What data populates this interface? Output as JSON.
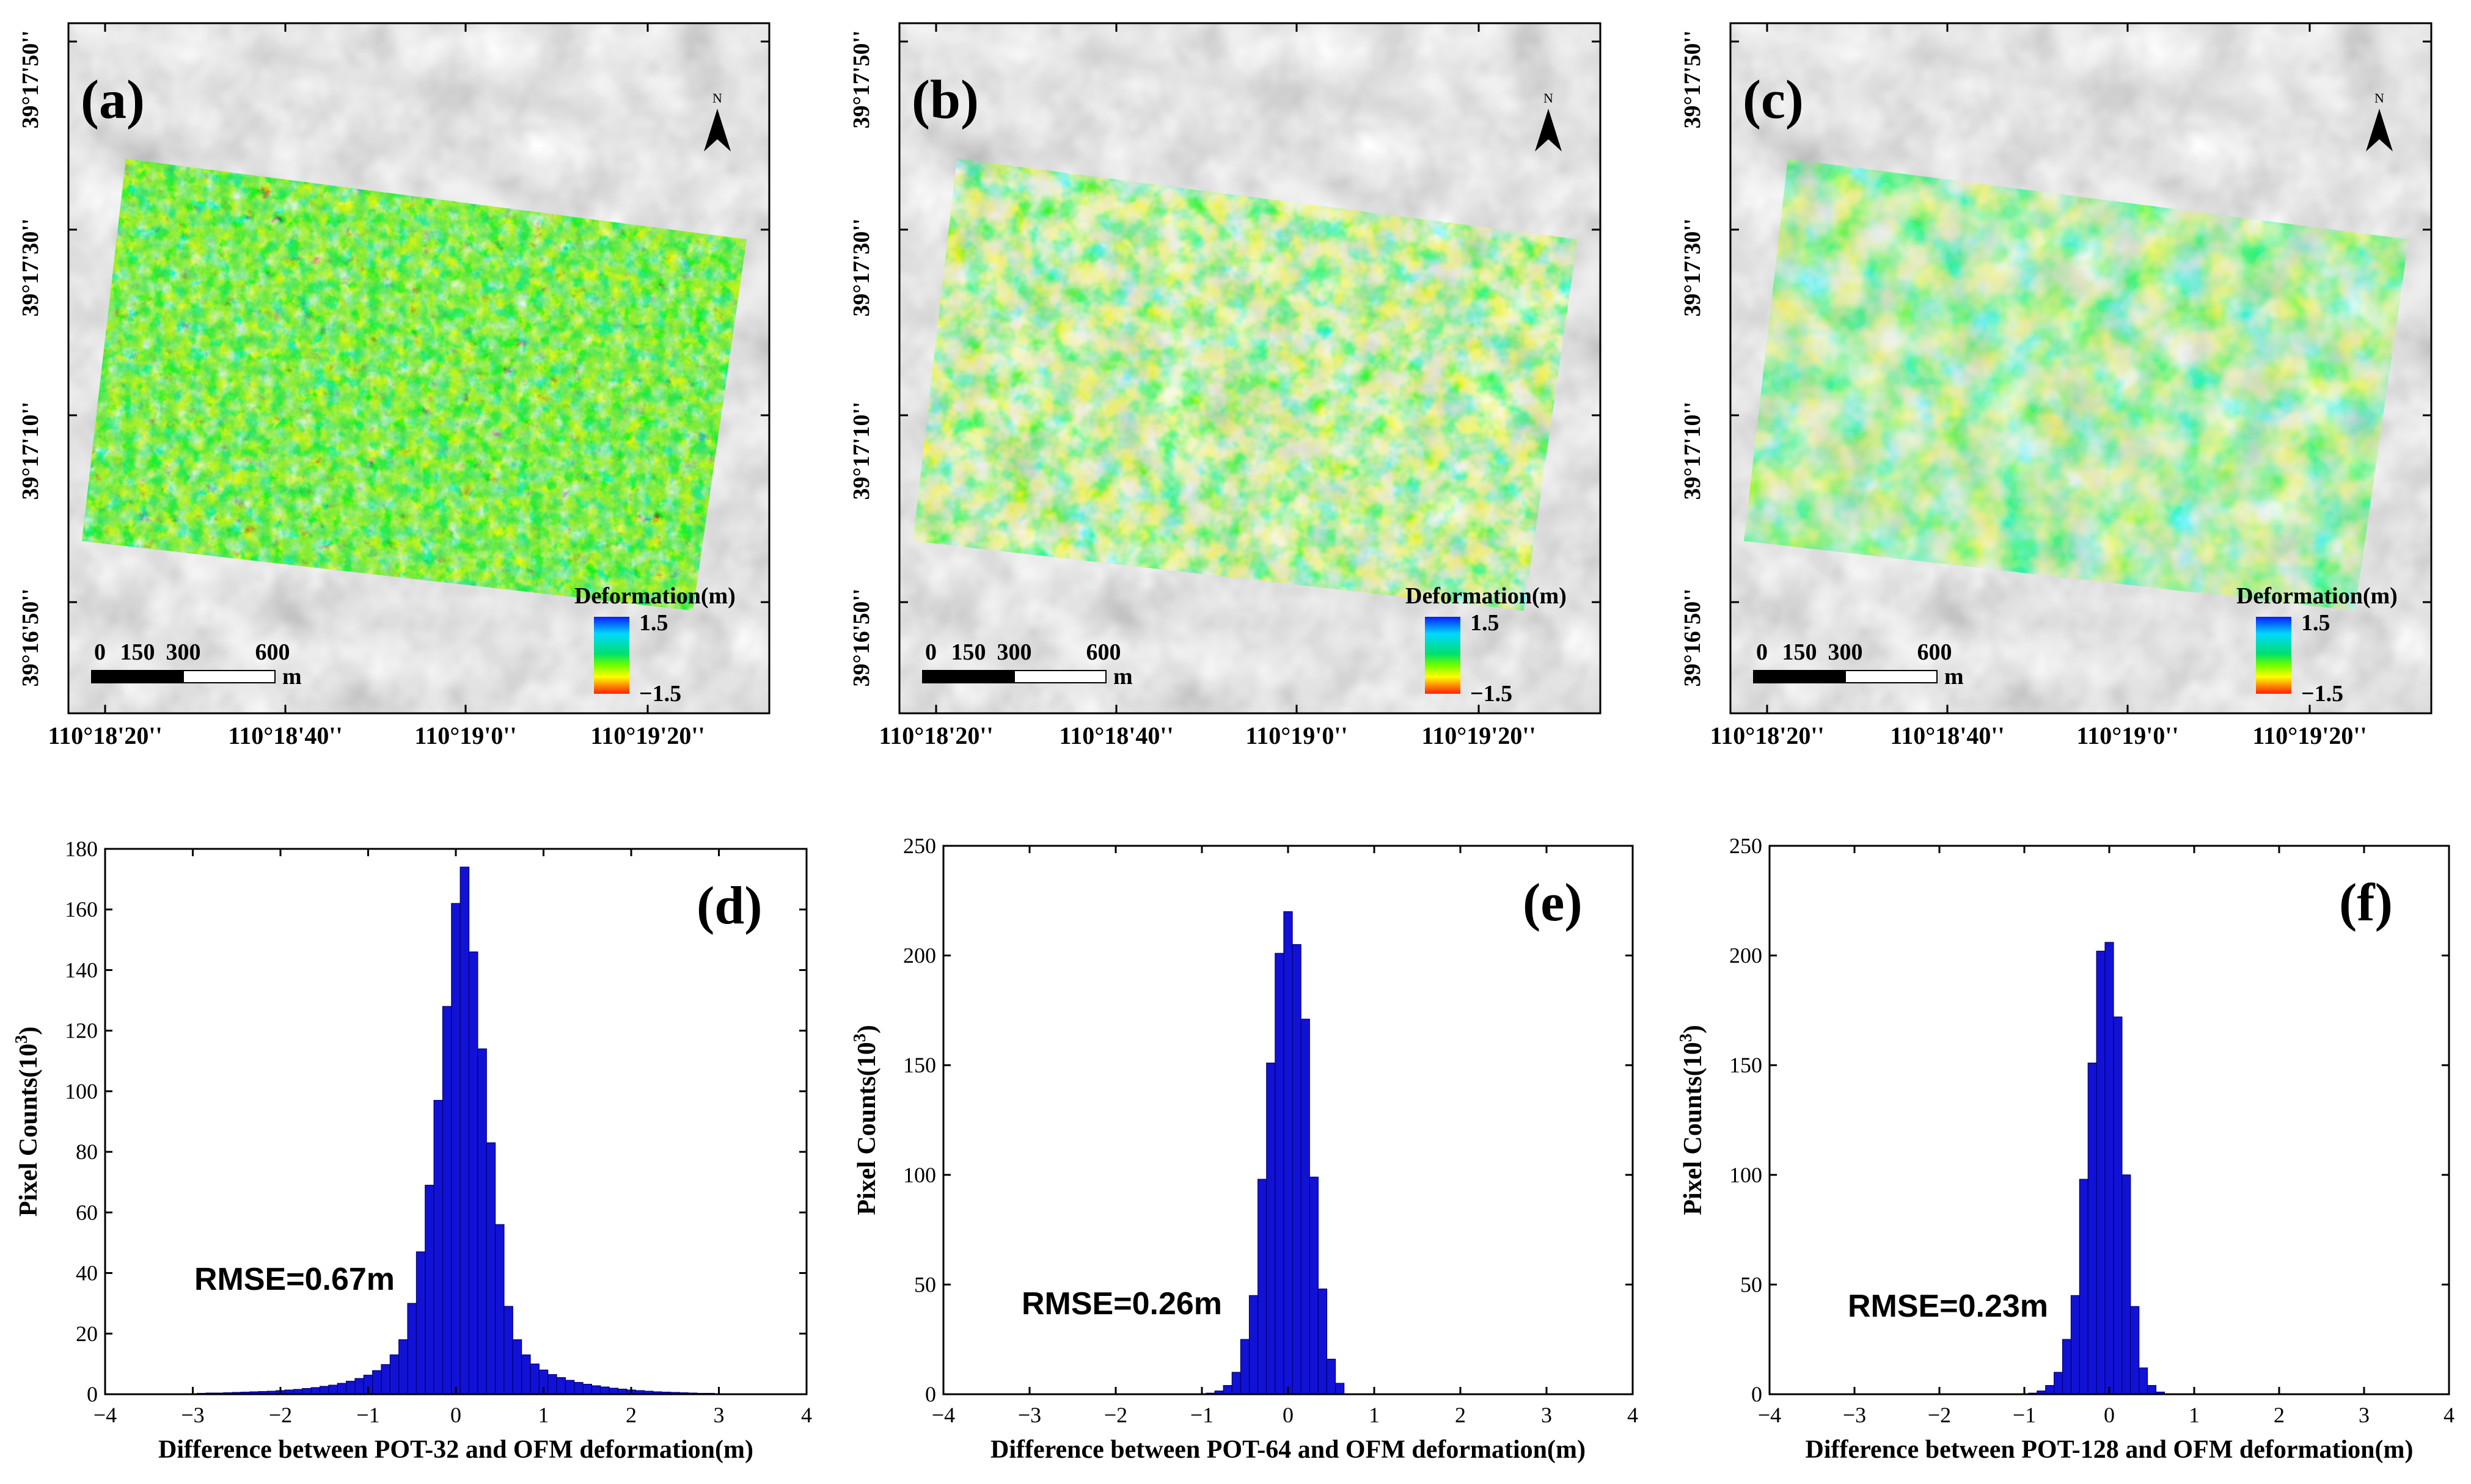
{
  "colors": {
    "bar_fill": "#1212d6",
    "bar_stroke": "#000070",
    "axis": "#000000",
    "scalebar_dark": "#000000",
    "scalebar_light": "#ffffff"
  },
  "maps": [
    {
      "panel_label": "(a)",
      "north_letter": "N",
      "lat_ticks": [
        "39°17'50''",
        "39°17'30''",
        "39°17'10''",
        "39°16'50''"
      ],
      "lon_ticks": [
        "110°18'20''",
        "110°18'40''",
        "110°19'0''",
        "110°19'20''"
      ],
      "scale_labels": [
        "0",
        "150",
        "300",
        "600"
      ],
      "scale_unit": "m",
      "legend_title": "Deformation(m)",
      "legend_max": "1.5",
      "legend_min": "−1.5",
      "noise_level": 3
    },
    {
      "panel_label": "(b)",
      "north_letter": "N",
      "lat_ticks": [
        "39°17'50''",
        "39°17'30''",
        "39°17'10''",
        "39°16'50''"
      ],
      "lon_ticks": [
        "110°18'20''",
        "110°18'40''",
        "110°19'0''",
        "110°19'20''"
      ],
      "scale_labels": [
        "0",
        "150",
        "300",
        "600"
      ],
      "scale_unit": "m",
      "legend_title": "Deformation(m)",
      "legend_max": "1.5",
      "legend_min": "−1.5",
      "noise_level": 2
    },
    {
      "panel_label": "(c)",
      "north_letter": "N",
      "lat_ticks": [
        "39°17'50''",
        "39°17'30''",
        "39°17'10''",
        "39°16'50''"
      ],
      "lon_ticks": [
        "110°18'20''",
        "110°18'40''",
        "110°19'0''",
        "110°19'20''"
      ],
      "scale_labels": [
        "0",
        "150",
        "300",
        "600"
      ],
      "scale_unit": "m",
      "legend_title": "Deformation(m)",
      "legend_max": "1.5",
      "legend_min": "−1.5",
      "noise_level": 1
    }
  ],
  "chart_data": [
    {
      "type": "bar",
      "panel_label": "(d)",
      "title": "",
      "xlabel": "Difference between POT-32 and OFM deformation(m)",
      "ylabel_main": "Pixel Counts(10",
      "ylabel_sup": "3",
      "ylabel_end": ")",
      "annotation": "RMSE=0.67m",
      "xlim": [
        -4,
        4
      ],
      "ylim": [
        0,
        180
      ],
      "xticks": [
        -4,
        -3,
        -2,
        -1,
        0,
        1,
        2,
        3,
        4
      ],
      "yticks": [
        0,
        20,
        40,
        60,
        80,
        100,
        120,
        140,
        160,
        180
      ],
      "bin_width": 0.1,
      "x": [
        -2.9,
        -2.8,
        -2.7,
        -2.6,
        -2.5,
        -2.4,
        -2.3,
        -2.2,
        -2.1,
        -2.0,
        -1.9,
        -1.8,
        -1.7,
        -1.6,
        -1.5,
        -1.4,
        -1.3,
        -1.2,
        -1.1,
        -1.0,
        -0.9,
        -0.8,
        -0.7,
        -0.6,
        -0.5,
        -0.4,
        -0.3,
        -0.2,
        -0.1,
        0.0,
        0.1,
        0.2,
        0.3,
        0.4,
        0.5,
        0.6,
        0.7,
        0.8,
        0.9,
        1.0,
        1.1,
        1.2,
        1.3,
        1.4,
        1.5,
        1.6,
        1.7,
        1.8,
        1.9,
        2.0,
        2.1,
        2.2,
        2.3,
        2.4,
        2.5,
        2.6,
        2.7,
        2.8,
        2.9
      ],
      "values": [
        0.3,
        0.4,
        0.4,
        0.5,
        0.6,
        0.7,
        0.8,
        0.9,
        1.0,
        1.2,
        1.4,
        1.6,
        1.9,
        2.2,
        2.6,
        3.0,
        3.6,
        4.3,
        5.2,
        6.3,
        7.8,
        9.8,
        13,
        18,
        30,
        47,
        69,
        97,
        128,
        162,
        174,
        146,
        114,
        83,
        56,
        29,
        18,
        13,
        10,
        8,
        6.5,
        5.5,
        4.6,
        3.9,
        3.3,
        2.8,
        2.4,
        2.0,
        1.7,
        1.4,
        1.2,
        1.0,
        0.8,
        0.7,
        0.6,
        0.5,
        0.4,
        0.3,
        0.3
      ]
    },
    {
      "type": "bar",
      "panel_label": "(e)",
      "title": "",
      "xlabel": "Difference between POT-64 and OFM deformation(m)",
      "ylabel_main": "Pixel Counts(10",
      "ylabel_sup": "3",
      "ylabel_end": ")",
      "annotation": "RMSE=0.26m",
      "xlim": [
        -4,
        4
      ],
      "ylim": [
        0,
        250
      ],
      "xticks": [
        -4,
        -3,
        -2,
        -1,
        0,
        1,
        2,
        3,
        4
      ],
      "yticks": [
        0,
        50,
        100,
        150,
        200,
        250
      ],
      "bin_width": 0.1,
      "x": [
        -0.9,
        -0.8,
        -0.7,
        -0.6,
        -0.5,
        -0.4,
        -0.3,
        -0.2,
        -0.1,
        0.0,
        0.1,
        0.2,
        0.3,
        0.4,
        0.5,
        0.6
      ],
      "values": [
        0.5,
        1.5,
        4,
        10,
        25,
        45,
        98,
        151,
        201,
        220,
        205,
        171,
        99,
        48,
        16,
        5
      ]
    },
    {
      "type": "bar",
      "panel_label": "(f)",
      "title": "",
      "xlabel": "Difference between POT-128 and OFM deformation(m)",
      "ylabel_main": "Pixel Counts(10",
      "ylabel_sup": "3",
      "ylabel_end": ")",
      "annotation": "RMSE=0.23m",
      "xlim": [
        -4,
        4
      ],
      "ylim": [
        0,
        250
      ],
      "xticks": [
        -4,
        -3,
        -2,
        -1,
        0,
        1,
        2,
        3,
        4
      ],
      "yticks": [
        0,
        50,
        100,
        150,
        200,
        250
      ],
      "bin_width": 0.1,
      "x": [
        -0.9,
        -0.8,
        -0.7,
        -0.6,
        -0.5,
        -0.4,
        -0.3,
        -0.2,
        -0.1,
        0.0,
        0.1,
        0.2,
        0.3,
        0.4,
        0.5,
        0.6
      ],
      "values": [
        0.5,
        1.5,
        4,
        10,
        25,
        45,
        98,
        151,
        202,
        206,
        172,
        100,
        40,
        12,
        4,
        1
      ]
    }
  ]
}
